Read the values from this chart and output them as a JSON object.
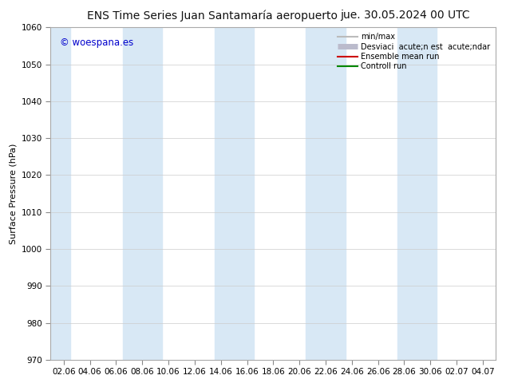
{
  "title_left": "ENS Time Series Juan Santamaría aeropuerto",
  "title_right": "jue. 30.05.2024 00 UTC",
  "ylabel": "Surface Pressure (hPa)",
  "ylim": [
    970,
    1060
  ],
  "yticks": [
    970,
    980,
    990,
    1000,
    1010,
    1020,
    1030,
    1040,
    1050,
    1060
  ],
  "xtick_labels": [
    "02.06",
    "04.06",
    "06.06",
    "08.06",
    "10.06",
    "12.06",
    "14.06",
    "16.06",
    "18.06",
    "20.06",
    "22.06",
    "24.06",
    "26.06",
    "28.06",
    "30.06",
    "02.07",
    "04.07"
  ],
  "bg_color": "#ffffff",
  "band_color": "#d8e8f5",
  "watermark": "© woespana.es",
  "watermark_color": "#0000cc",
  "grid_color": "#cccccc",
  "title_fontsize": 10,
  "axis_fontsize": 8,
  "tick_fontsize": 7.5,
  "legend_fontsize": 7
}
